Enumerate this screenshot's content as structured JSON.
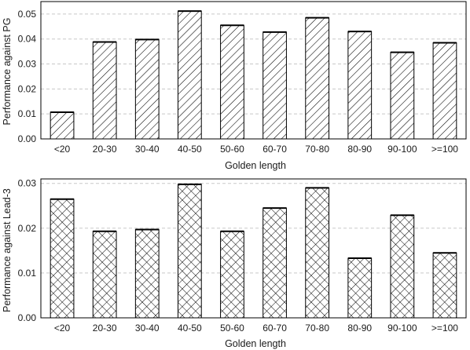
{
  "chart_data": [
    {
      "type": "bar",
      "categories": [
        "<20",
        "20-30",
        "30-40",
        "40-50",
        "50-60",
        "60-70",
        "70-80",
        "80-90",
        "90-100",
        ">=100"
      ],
      "values": [
        0.0107,
        0.0388,
        0.0398,
        0.0512,
        0.0455,
        0.0428,
        0.0485,
        0.043,
        0.0347,
        0.0385
      ],
      "xlabel": "Golden length",
      "ylabel": "Performance against PG",
      "ylim": [
        0,
        0.055
      ],
      "yticks": [
        "0.00",
        "0.01",
        "0.02",
        "0.03",
        "0.04",
        "0.05"
      ],
      "ytick_values": [
        0,
        0.01,
        0.02,
        0.03,
        0.04,
        0.05
      ],
      "grid": "horizontal dashed",
      "pattern": "diagonal hatch",
      "bar_fill": "#ffffff",
      "bar_stroke": "#000000"
    },
    {
      "type": "bar",
      "categories": [
        "<20",
        "20-30",
        "30-40",
        "40-50",
        "50-60",
        "60-70",
        "70-80",
        "80-90",
        "90-100",
        ">=100"
      ],
      "values": [
        0.0265,
        0.0193,
        0.0197,
        0.0298,
        0.0193,
        0.0245,
        0.029,
        0.0133,
        0.0229,
        0.0145
      ],
      "xlabel": "Golden length",
      "ylabel": "Performance against Lead-3",
      "ylim": [
        0,
        0.031
      ],
      "yticks": [
        "0.00",
        "0.01",
        "0.02",
        "0.03"
      ],
      "ytick_values": [
        0,
        0.01,
        0.02,
        0.03
      ],
      "grid": "horizontal dashed",
      "pattern": "cross hatch",
      "bar_fill": "#ffffff",
      "bar_stroke": "#000000"
    }
  ]
}
